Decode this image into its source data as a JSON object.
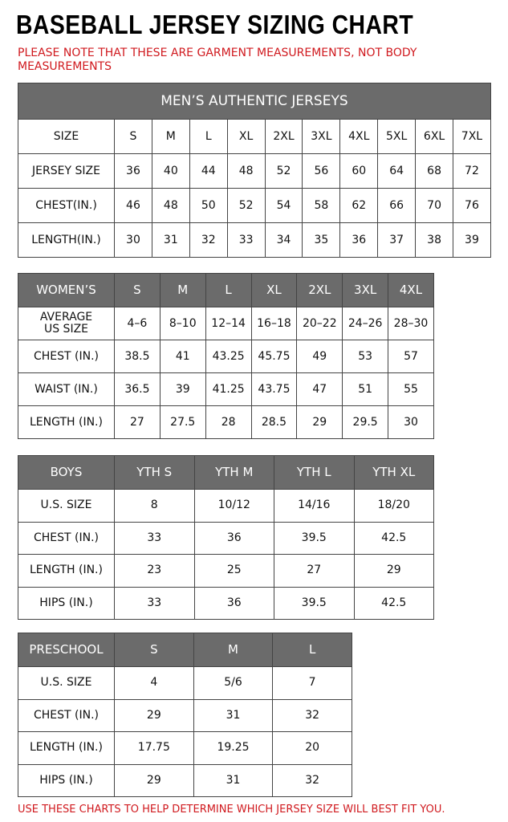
{
  "title": "BASEBALL JERSEY SIZING CHART",
  "note": "PLEASE NOTE THAT THESE ARE GARMENT MEASUREMENTS, NOT BODY MEASUREMENTS",
  "mens": {
    "title": "MEN’S AUTHENTIC JERSEYS",
    "rows": [
      [
        "SIZE",
        "S",
        "M",
        "L",
        "XL",
        "2XL",
        "3XL",
        "4XL",
        "5XL",
        "6XL",
        "7XL"
      ],
      [
        "JERSEY SIZE",
        "36",
        "40",
        "44",
        "48",
        "52",
        "56",
        "60",
        "64",
        "68",
        "72"
      ],
      [
        "CHEST(IN.)",
        "46",
        "48",
        "50",
        "52",
        "54",
        "58",
        "62",
        "66",
        "70",
        "76"
      ],
      [
        "LENGTH(IN.)",
        "30",
        "31",
        "32",
        "33",
        "34",
        "35",
        "36",
        "37",
        "38",
        "39"
      ]
    ]
  },
  "womens": {
    "header": [
      "WOMEN’S",
      "S",
      "M",
      "L",
      "XL",
      "2XL",
      "3XL",
      "4XL"
    ],
    "rows": [
      [
        "AVERAGE US SIZE",
        "4–6",
        "8–10",
        "12–14",
        "16–18",
        "20–22",
        "24–26",
        "28–30"
      ],
      [
        "CHEST (IN.)",
        "38.5",
        "41",
        "43.25",
        "45.75",
        "49",
        "53",
        "57"
      ],
      [
        "WAIST (IN.)",
        "36.5",
        "39",
        "41.25",
        "43.75",
        "47",
        "51",
        "55"
      ],
      [
        "LENGTH (IN.)",
        "27",
        "27.5",
        "28",
        "28.5",
        "29",
        "29.5",
        "30"
      ]
    ]
  },
  "boys": {
    "header": [
      "BOYS",
      "YTH S",
      "YTH M",
      "YTH L",
      "YTH XL"
    ],
    "rows": [
      [
        "U.S. SIZE",
        "8",
        "10/12",
        "14/16",
        "18/20"
      ],
      [
        "CHEST (IN.)",
        "33",
        "36",
        "39.5",
        "42.5"
      ],
      [
        "LENGTH (IN.)",
        "23",
        "25",
        "27",
        "29"
      ],
      [
        "HIPS (IN.)",
        "33",
        "36",
        "39.5",
        "42.5"
      ]
    ]
  },
  "preschool": {
    "header": [
      "PRESCHOOL",
      "S",
      "M",
      "L"
    ],
    "rows": [
      [
        "U.S. SIZE",
        "4",
        "5/6",
        "7"
      ],
      [
        "CHEST (IN.)",
        "29",
        "31",
        "32"
      ],
      [
        "LENGTH (IN.)",
        "17.75",
        "19.25",
        "20"
      ],
      [
        "HIPS (IN.)",
        "29",
        "31",
        "32"
      ]
    ]
  },
  "footer": "USE THESE CHARTS TO HELP DETERMINE WHICH JERSEY SIZE WILL BEST FIT YOU."
}
